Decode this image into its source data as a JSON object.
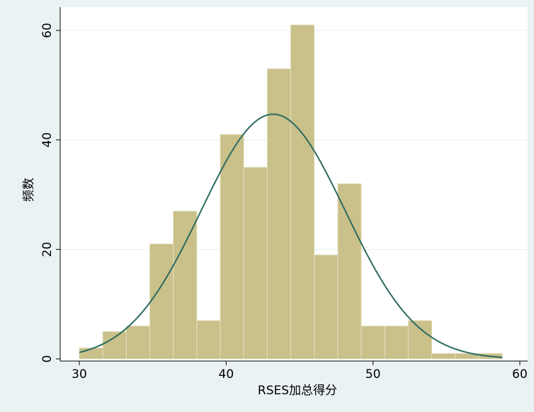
{
  "chart_data": {
    "type": "bar",
    "subtype": "histogram-with-normal-curve",
    "xlabel": "RSES加总得分",
    "ylabel": "频数",
    "xlim": [
      30,
      60
    ],
    "ylim": [
      0,
      62
    ],
    "x_ticks": [
      "30",
      "40",
      "50",
      "60"
    ],
    "y_ticks": [
      "0",
      "20",
      "40",
      "60"
    ],
    "grid": "horizontal",
    "bin_edges": [
      30,
      31.6,
      33.2,
      34.8,
      36.4,
      38.0,
      39.6,
      41.2,
      42.8,
      44.4,
      46.0,
      47.6,
      49.2,
      50.8,
      52.4,
      54.0,
      55.6,
      57.2,
      58.8
    ],
    "values": [
      2,
      5,
      6,
      21,
      27,
      7,
      41,
      35,
      53,
      61,
      19,
      32,
      6,
      6,
      7,
      1,
      1,
      1
    ],
    "normal_curve": {
      "peak_x": 43.2,
      "peak_y": 44.7,
      "sd": 4.9
    },
    "colors": {
      "bar_fill": "#c9c08a",
      "bar_stroke": "#e4dfbf",
      "curve": "#2b6a60",
      "plot_bg": "#ffffff",
      "outer_bg": "#eaf2f3",
      "grid": "#e8eef0"
    }
  }
}
